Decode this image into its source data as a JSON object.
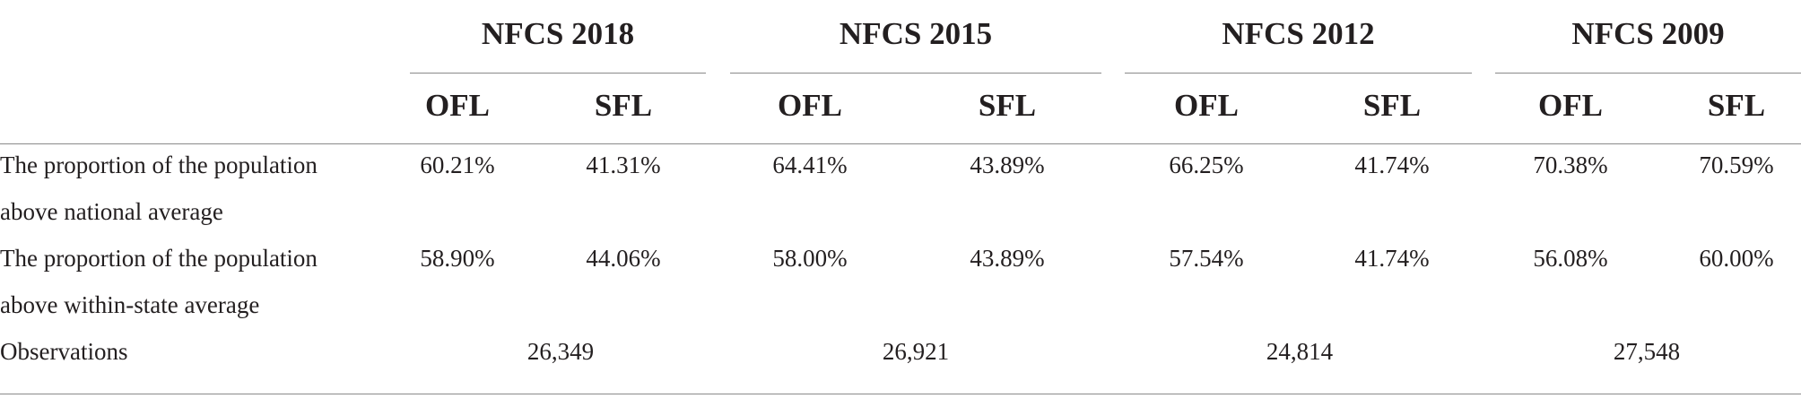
{
  "groups": [
    {
      "title": "NFCS 2018",
      "cols": [
        "OFL",
        "SFL"
      ]
    },
    {
      "title": "NFCS 2015",
      "cols": [
        "OFL",
        "SFL"
      ]
    },
    {
      "title": "NFCS 2012",
      "cols": [
        "OFL",
        "SFL"
      ]
    },
    {
      "title": "NFCS 2009",
      "cols": [
        "OFL",
        "SFL"
      ]
    }
  ],
  "rows": [
    {
      "label": "The proportion of the population above national average",
      "values": [
        "60.21%",
        "41.31%",
        "64.41%",
        "43.89%",
        "66.25%",
        "41.74%",
        "70.38%",
        "70.59%"
      ]
    },
    {
      "label": "The proportion of the population above within-state average",
      "values": [
        "58.90%",
        "44.06%",
        "58.00%",
        "43.89%",
        "57.54%",
        "41.74%",
        "56.08%",
        "60.00%"
      ]
    }
  ],
  "observations": {
    "label": "Observations",
    "values": [
      "26,349",
      "26,921",
      "24,814",
      "27,548"
    ]
  }
}
